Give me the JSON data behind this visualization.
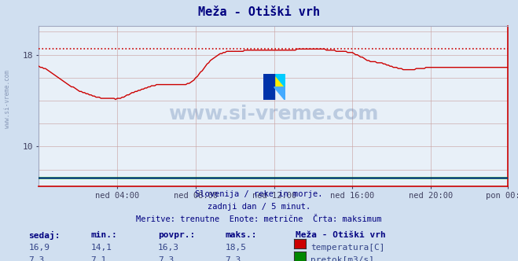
{
  "title": "Meža - Otiški vrh",
  "bg_color": "#d0dff0",
  "plot_bg_color": "#e8f0f8",
  "grid_color": "#c8a0a0",
  "grid_color_h": "#c0b0b0",
  "title_color": "#000080",
  "axis_label_color": "#404060",
  "text_color": "#000080",
  "side_text": "www.si-vreme.com",
  "watermark_text": "www.si-vreme.com",
  "subtitle_lines": [
    "Slovenija / reke in morje.",
    "zadnji dan / 5 minut.",
    "Meritve: trenutne  Enote: metrične  Črta: maksimum"
  ],
  "x_tick_labels": [
    "ned 04:00",
    "ned 08:00",
    "ned 12:00",
    "ned 16:00",
    "ned 20:00",
    "pon 00:00"
  ],
  "x_tick_positions": [
    48,
    96,
    144,
    192,
    240,
    287
  ],
  "total_points": 288,
  "ylim": [
    6.5,
    20.5
  ],
  "y_ticks": [
    10,
    18
  ],
  "y_grid_lines": [
    8,
    10,
    12,
    14,
    16,
    18,
    20
  ],
  "max_line_y": 18.5,
  "temp_color": "#cc0000",
  "flow_color": "#008800",
  "blue_line_color": "#0000cc",
  "table_headers": [
    "sedaj:",
    "min.:",
    "povpr.:",
    "maks.:"
  ],
  "table_temp": [
    "16,9",
    "14,1",
    "16,3",
    "18,5"
  ],
  "table_flow": [
    "7,3",
    "7,1",
    "7,3",
    "7,3"
  ],
  "legend_title": "Meža - Otiški vrh",
  "legend_temp_label": "temperatura[C]",
  "legend_flow_label": "pretok[m3/s]",
  "temp_data": [
    17.0,
    16.9,
    16.9,
    16.8,
    16.8,
    16.7,
    16.6,
    16.5,
    16.4,
    16.3,
    16.2,
    16.1,
    16.0,
    15.9,
    15.8,
    15.7,
    15.6,
    15.5,
    15.4,
    15.3,
    15.2,
    15.2,
    15.1,
    15.0,
    14.9,
    14.8,
    14.8,
    14.7,
    14.7,
    14.6,
    14.6,
    14.5,
    14.5,
    14.4,
    14.4,
    14.3,
    14.3,
    14.3,
    14.2,
    14.2,
    14.2,
    14.2,
    14.2,
    14.2,
    14.2,
    14.2,
    14.2,
    14.1,
    14.2,
    14.2,
    14.2,
    14.3,
    14.3,
    14.4,
    14.5,
    14.5,
    14.6,
    14.7,
    14.7,
    14.8,
    14.8,
    14.9,
    14.9,
    15.0,
    15.0,
    15.1,
    15.1,
    15.2,
    15.2,
    15.3,
    15.3,
    15.3,
    15.4,
    15.4,
    15.4,
    15.4,
    15.4,
    15.4,
    15.4,
    15.4,
    15.4,
    15.4,
    15.4,
    15.4,
    15.4,
    15.4,
    15.4,
    15.4,
    15.4,
    15.4,
    15.4,
    15.5,
    15.5,
    15.6,
    15.7,
    15.8,
    16.0,
    16.1,
    16.3,
    16.5,
    16.6,
    16.8,
    17.0,
    17.2,
    17.3,
    17.5,
    17.6,
    17.7,
    17.8,
    17.9,
    18.0,
    18.1,
    18.1,
    18.2,
    18.2,
    18.3,
    18.3,
    18.3,
    18.3,
    18.3,
    18.3,
    18.3,
    18.3,
    18.3,
    18.3,
    18.3,
    18.4,
    18.4,
    18.4,
    18.4,
    18.4,
    18.4,
    18.4,
    18.4,
    18.4,
    18.4,
    18.4,
    18.4,
    18.4,
    18.4,
    18.4,
    18.4,
    18.4,
    18.4,
    18.4,
    18.4,
    18.4,
    18.4,
    18.4,
    18.4,
    18.4,
    18.4,
    18.4,
    18.4,
    18.4,
    18.4,
    18.4,
    18.4,
    18.5,
    18.5,
    18.5,
    18.5,
    18.5,
    18.5,
    18.5,
    18.5,
    18.5,
    18.5,
    18.5,
    18.5,
    18.5,
    18.5,
    18.5,
    18.5,
    18.5,
    18.5,
    18.4,
    18.4,
    18.4,
    18.4,
    18.4,
    18.4,
    18.3,
    18.3,
    18.3,
    18.3,
    18.3,
    18.3,
    18.3,
    18.2,
    18.2,
    18.2,
    18.2,
    18.1,
    18.0,
    18.0,
    17.9,
    17.8,
    17.8,
    17.7,
    17.6,
    17.5,
    17.5,
    17.4,
    17.4,
    17.4,
    17.4,
    17.3,
    17.3,
    17.3,
    17.3,
    17.2,
    17.2,
    17.1,
    17.1,
    17.0,
    17.0,
    16.9,
    16.9,
    16.9,
    16.8,
    16.8,
    16.8,
    16.7,
    16.7,
    16.7,
    16.7,
    16.7,
    16.7,
    16.7,
    16.7,
    16.8,
    16.8,
    16.8,
    16.8,
    16.8,
    16.8,
    16.9,
    16.9,
    16.9,
    16.9,
    16.9,
    16.9,
    16.9,
    16.9,
    16.9,
    16.9,
    16.9,
    16.9,
    16.9,
    16.9,
    16.9,
    16.9,
    16.9,
    16.9,
    16.9,
    16.9,
    16.9,
    16.9,
    16.9,
    16.9,
    16.9,
    16.9,
    16.9,
    16.9,
    16.9,
    16.9,
    16.9,
    16.9,
    16.9,
    16.9,
    16.9,
    16.9,
    16.9,
    16.9,
    16.9,
    16.9,
    16.9,
    16.9,
    16.9,
    16.9,
    16.9,
    16.9,
    16.9,
    16.9,
    16.9,
    16.9,
    16.9
  ],
  "flow_data_value": 7.3
}
